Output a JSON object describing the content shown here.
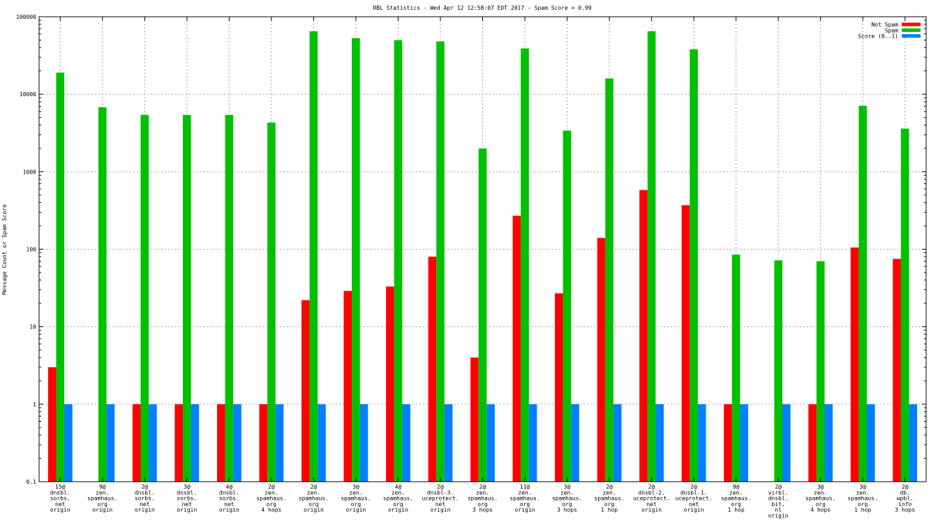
{
  "chart_data": {
    "type": "bar",
    "title": "RBL Statistics - Wed Apr 12 12:58:07 EDT 2017 - Spam Score > 0.99",
    "ylabel": "Message Count or Spam Score",
    "xlabel": "",
    "yscale": "log",
    "ylim": [
      0.1,
      100000
    ],
    "yticks": [
      "0.1",
      "1",
      "10",
      "100",
      "1000",
      "10000",
      "100000"
    ],
    "grid": true,
    "legend_position": "top-right",
    "categories": [
      [
        "15@",
        "dnsbl.",
        "sorbs.",
        "net",
        "origin"
      ],
      [
        "9@",
        "zen.",
        "spamhaus.",
        "org",
        "origin"
      ],
      [
        "2@",
        "dnsbl.",
        "sorbs.",
        "net",
        "origin"
      ],
      [
        "3@",
        "dnsbl.",
        "sorbs.",
        "net",
        "origin"
      ],
      [
        "4@",
        "dnsbl.",
        "sorbs.",
        "net",
        "origin"
      ],
      [
        "2@",
        "zen.",
        "spamhaus.",
        "org",
        "4 hops"
      ],
      [
        "2@",
        "zen.",
        "spamhaus.",
        "org",
        "origin"
      ],
      [
        "3@",
        "zen.",
        "spamhaus.",
        "org",
        "origin"
      ],
      [
        "4@",
        "zen.",
        "spamhaus.",
        "org",
        "origin"
      ],
      [
        "2@",
        "dnsbl-3.",
        "uceprotect.",
        "net",
        "origin"
      ],
      [
        "2@",
        "zen.",
        "spamhaus.",
        "org",
        "3 hops"
      ],
      [
        "11@",
        "zen.",
        "spamhaus.",
        "org",
        "origin"
      ],
      [
        "3@",
        "zen.",
        "spamhaus.",
        "org",
        "3 hops"
      ],
      [
        "2@",
        "zen.",
        "spamhaus.",
        "org",
        "1 hop"
      ],
      [
        "2@",
        "dnsbl-2.",
        "uceprotect.",
        "net",
        "origin"
      ],
      [
        "2@",
        "dnsbl-1.",
        "uceprotect.",
        "net",
        "origin"
      ],
      [
        "9@",
        "zen.",
        "spamhaus.",
        "org",
        "1 hop"
      ],
      [
        "2@",
        "virbl.",
        "dnsbl.",
        "bit.",
        "nl",
        "origin"
      ],
      [
        "3@",
        "zen.",
        "spamhaus.",
        "org",
        "4 hops"
      ],
      [
        "3@",
        "zen.",
        "spamhaus.",
        "org",
        "1 hop"
      ],
      [
        "2@",
        "db.",
        "wpbl.",
        "info",
        "3 hops"
      ]
    ],
    "series": [
      {
        "name": "Not Spam",
        "color": "#ff0000",
        "values": [
          3,
          null,
          1,
          1,
          1,
          1,
          22,
          29,
          33,
          80,
          4,
          270,
          27,
          140,
          580,
          370,
          1,
          null,
          1,
          105,
          75
        ]
      },
      {
        "name": "Spam",
        "color": "#00c000",
        "values": [
          19000,
          6800,
          5400,
          5400,
          5400,
          4300,
          65000,
          53000,
          50000,
          48000,
          2000,
          39000,
          3400,
          16000,
          65000,
          38000,
          85,
          72,
          70,
          7100,
          3600
        ]
      },
      {
        "name": "Score (0..1)",
        "color": "#0080ff",
        "values": [
          1,
          1,
          1,
          1,
          1,
          1,
          1,
          1,
          1,
          1,
          1,
          1,
          1,
          1,
          1,
          1,
          1,
          1,
          1,
          1,
          1
        ]
      }
    ]
  }
}
